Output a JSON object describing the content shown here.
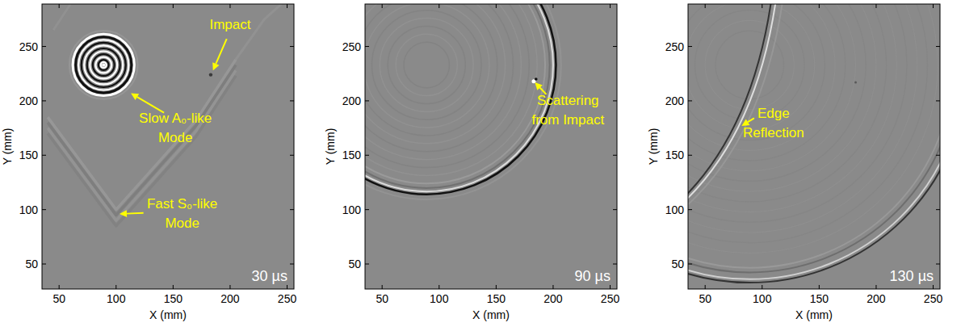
{
  "chart_data": [
    {
      "type": "image",
      "x_label": "X (mm)",
      "y_label": "Y (mm)",
      "xlim": [
        35,
        256
      ],
      "xticks": [
        50,
        100,
        150,
        200,
        250
      ],
      "ylim": [
        27,
        289
      ],
      "yticks": [
        50,
        100,
        150,
        200,
        250
      ],
      "time_label": "30 µs",
      "annotations": [
        {
          "lines": [
            "Impact"
          ]
        },
        {
          "lines": [
            "Slow A₀-like",
            "Mode"
          ]
        },
        {
          "lines": [
            "Fast S₀-like",
            "Mode"
          ]
        }
      ]
    },
    {
      "type": "image",
      "x_label": "X (mm)",
      "y_label": "Y (mm)",
      "xlim": [
        35,
        256
      ],
      "xticks": [
        50,
        100,
        150,
        200,
        250
      ],
      "ylim": [
        27,
        289
      ],
      "yticks": [
        50,
        100,
        150,
        200,
        250
      ],
      "time_label": "90 µs",
      "annotations": [
        {
          "lines": [
            "Scattering",
            "from Impact"
          ]
        }
      ]
    },
    {
      "type": "image",
      "x_label": "X (mm)",
      "y_label": "Y (mm)",
      "xlim": [
        35,
        256
      ],
      "xticks": [
        50,
        100,
        150,
        200,
        250
      ],
      "ylim": [
        27,
        289
      ],
      "yticks": [
        50,
        100,
        150,
        200,
        250
      ],
      "time_label": "130 µs",
      "annotations": [
        {
          "lines": [
            "Edge",
            "Reflection"
          ]
        }
      ]
    }
  ]
}
